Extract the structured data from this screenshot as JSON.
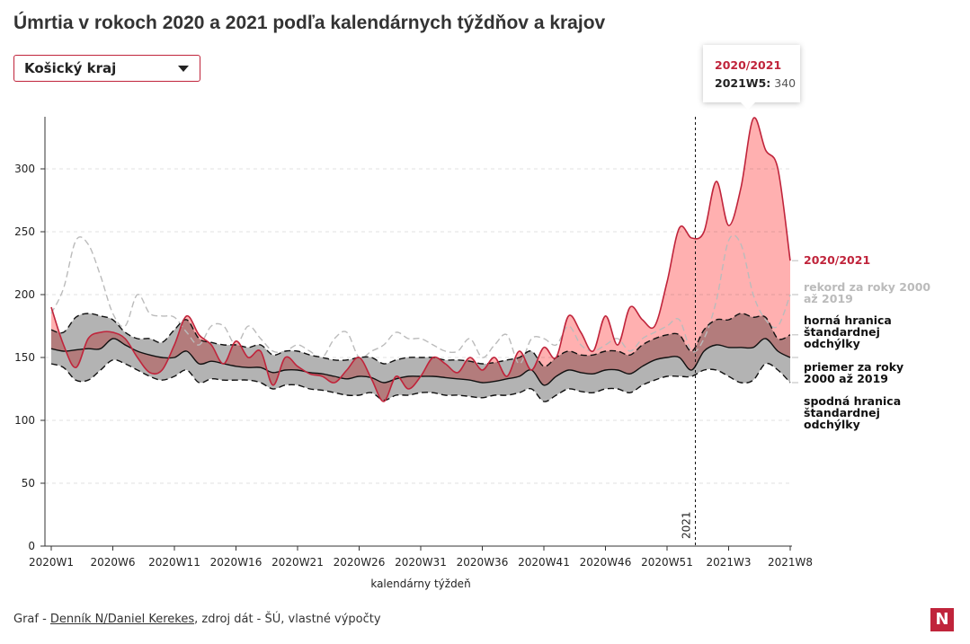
{
  "chart_data": {
    "type": "line",
    "title": "Úmrtia v rokoch 2020 a 2021 podľa kalendárnych týždňov a krajov",
    "dropdown": "Košický kraj",
    "x_label": "kalendárny týždeň",
    "annotation": "2021",
    "tooltip": {
      "label": "2021W5:"
    },
    "categories": [
      "2020W1",
      null,
      null,
      null,
      null,
      "2020W6",
      null,
      null,
      null,
      null,
      "2020W11",
      null,
      null,
      null,
      null,
      "2020W16",
      null,
      null,
      null,
      null,
      "2020W21",
      null,
      null,
      null,
      null,
      "2020W26",
      null,
      null,
      null,
      null,
      "2020W31",
      null,
      null,
      null,
      null,
      "2020W36",
      null,
      null,
      null,
      null,
      "2020W41",
      null,
      null,
      null,
      null,
      "2020W46",
      null,
      null,
      null,
      null,
      "2020W51",
      null,
      null,
      null,
      null,
      "2021W3",
      null,
      null,
      null,
      null,
      "2021W8"
    ],
    "ylim": [
      0,
      340
    ],
    "yticks": [
      0,
      50,
      100,
      150,
      200,
      250,
      300
    ],
    "grid": true,
    "series": [
      {
        "name": "2020/2021",
        "color": "#c0243b",
        "values": [
          190,
          160,
          142,
          165,
          170,
          170,
          165,
          150,
          138,
          140,
          160,
          183,
          168,
          160,
          145,
          163,
          150,
          155,
          128,
          150,
          143,
          137,
          135,
          130,
          140,
          150,
          133,
          115,
          135,
          125,
          135,
          150,
          145,
          138,
          150,
          140,
          150,
          135,
          155,
          140,
          158,
          150,
          183,
          170,
          155,
          183,
          160,
          190,
          180,
          175,
          210,
          253,
          245,
          250,
          290,
          255,
          285,
          340,
          315,
          300,
          227
        ]
      },
      {
        "name": "rekord za roky 2000 až 2019",
        "color": "#bbbbbb",
        "dashed": true,
        "values": [
          185,
          205,
          243,
          240,
          215,
          185,
          175,
          200,
          185,
          183,
          182,
          170,
          160,
          175,
          175,
          160,
          175,
          165,
          155,
          155,
          160,
          155,
          150,
          165,
          170,
          150,
          155,
          160,
          170,
          165,
          165,
          160,
          155,
          155,
          165,
          150,
          160,
          168,
          145,
          165,
          165,
          160,
          175,
          160,
          155,
          160,
          165,
          155,
          165,
          170,
          175,
          180,
          155,
          165,
          195,
          243,
          240,
          200,
          180,
          175,
          200
        ]
      },
      {
        "name": "horná hranica štandardnej odchýlky",
        "color": "#111111",
        "dashed": true,
        "values": [
          172,
          170,
          182,
          185,
          183,
          180,
          170,
          165,
          165,
          162,
          172,
          180,
          165,
          162,
          160,
          160,
          158,
          160,
          152,
          155,
          155,
          152,
          150,
          148,
          148,
          150,
          150,
          145,
          148,
          150,
          150,
          150,
          148,
          148,
          147,
          145,
          146,
          148,
          150,
          155,
          143,
          150,
          155,
          152,
          152,
          155,
          155,
          152,
          160,
          165,
          168,
          168,
          155,
          172,
          180,
          180,
          185,
          182,
          182,
          165,
          168
        ]
      },
      {
        "name": "priemer za roky 2000 až 2019",
        "color": "#111111",
        "values": [
          157,
          155,
          156,
          157,
          157,
          165,
          160,
          155,
          152,
          150,
          150,
          155,
          145,
          147,
          145,
          143,
          142,
          142,
          138,
          140,
          140,
          138,
          137,
          135,
          133,
          135,
          134,
          130,
          133,
          135,
          135,
          135,
          134,
          133,
          132,
          130,
          131,
          133,
          135,
          140,
          128,
          135,
          140,
          138,
          137,
          140,
          140,
          137,
          143,
          148,
          150,
          150,
          140,
          155,
          160,
          158,
          158,
          158,
          165,
          155,
          150
        ]
      },
      {
        "name": "spodná hranica štandardnej odchýlky",
        "color": "#111111",
        "dashed": true,
        "values": [
          145,
          142,
          132,
          132,
          140,
          148,
          145,
          140,
          135,
          132,
          135,
          140,
          130,
          133,
          132,
          132,
          132,
          130,
          125,
          128,
          128,
          125,
          124,
          122,
          120,
          120,
          122,
          116,
          120,
          120,
          122,
          122,
          120,
          120,
          119,
          118,
          120,
          120,
          122,
          125,
          115,
          120,
          125,
          123,
          122,
          125,
          125,
          122,
          128,
          132,
          135,
          135,
          135,
          140,
          140,
          135,
          130,
          132,
          145,
          140,
          130
        ]
      }
    ]
  },
  "footer": {
    "prefix": "Graf - ",
    "link": "Denník N/Daniel Kerekes",
    "suffix": ", zdroj dát - ŠÚ, vlastné výpočty"
  },
  "logo": "N"
}
